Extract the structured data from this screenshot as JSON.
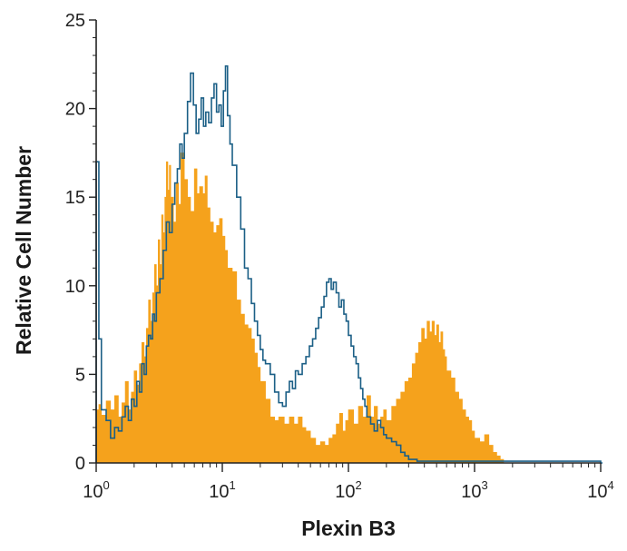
{
  "chart_data": {
    "type": "histogram-overlay",
    "title": "",
    "xlabel": "Plexin B3",
    "ylabel": "Relative Cell Number",
    "x_scale": "log",
    "xlim": [
      1,
      10000
    ],
    "ylim": [
      0,
      25
    ],
    "grid": false,
    "legend": "none",
    "x_ticks": [
      {
        "base": "10",
        "exp": "0"
      },
      {
        "base": "10",
        "exp": "1"
      },
      {
        "base": "10",
        "exp": "2"
      },
      {
        "base": "10",
        "exp": "3"
      },
      {
        "base": "10",
        "exp": "4"
      }
    ],
    "y_ticks": [
      "0",
      "5",
      "10",
      "15",
      "20",
      "25"
    ],
    "series": [
      {
        "style": "filled",
        "color": "#f5a21c",
        "points": [
          [
            1.0,
            3
          ],
          [
            1.05,
            3.3
          ],
          [
            1.1,
            2.7
          ],
          [
            1.2,
            3.5
          ],
          [
            1.3,
            3.0
          ],
          [
            1.4,
            3.8
          ],
          [
            1.5,
            2.6
          ],
          [
            1.6,
            3.4
          ],
          [
            1.7,
            4.6
          ],
          [
            1.8,
            3.0
          ],
          [
            1.9,
            4.0
          ],
          [
            2.0,
            5.2
          ],
          [
            2.1,
            4.4
          ],
          [
            2.2,
            5.6
          ],
          [
            2.3,
            6.8
          ],
          [
            2.4,
            6.0
          ],
          [
            2.5,
            7.6
          ],
          [
            2.6,
            9.2
          ],
          [
            2.7,
            8.0
          ],
          [
            2.8,
            9.6
          ],
          [
            2.9,
            11.2
          ],
          [
            3.0,
            10.0
          ],
          [
            3.1,
            12.6
          ],
          [
            3.2,
            11.2
          ],
          [
            3.3,
            14.0
          ],
          [
            3.4,
            13.0
          ],
          [
            3.5,
            15.0
          ],
          [
            3.6,
            17.0
          ],
          [
            3.7,
            15.4
          ],
          [
            3.8,
            16.8
          ],
          [
            3.9,
            15.0
          ],
          [
            4.1,
            13.6
          ],
          [
            4.3,
            15.8
          ],
          [
            4.5,
            14.6
          ],
          [
            4.7,
            17.5
          ],
          [
            5.0,
            16.0
          ],
          [
            5.3,
            15.0
          ],
          [
            5.6,
            14.2
          ],
          [
            6.0,
            16.6
          ],
          [
            6.3,
            15.2
          ],
          [
            6.6,
            15.6
          ],
          [
            7.0,
            15.2
          ],
          [
            7.3,
            16.2
          ],
          [
            7.6,
            14.4
          ],
          [
            8.0,
            13.6
          ],
          [
            8.5,
            13.0
          ],
          [
            9.0,
            13.4
          ],
          [
            9.5,
            13.8
          ],
          [
            10.0,
            12.8
          ],
          [
            10.5,
            12.0
          ],
          [
            11.0,
            11.0
          ],
          [
            12.0,
            10.8
          ],
          [
            13.0,
            9.2
          ],
          [
            14.0,
            8.4
          ],
          [
            15.0,
            7.8
          ],
          [
            16.0,
            7.6
          ],
          [
            17.0,
            7.0
          ],
          [
            18.0,
            6.2
          ],
          [
            19.0,
            5.4
          ],
          [
            20.0,
            4.6
          ],
          [
            22.0,
            3.6
          ],
          [
            24.0,
            2.6
          ],
          [
            26.0,
            2.4
          ],
          [
            28.0,
            2.6
          ],
          [
            31.0,
            2.2
          ],
          [
            34.0,
            2.6
          ],
          [
            37.0,
            2.2
          ],
          [
            40.0,
            2.6
          ],
          [
            43.0,
            2.0
          ],
          [
            46.0,
            1.8
          ],
          [
            50.0,
            1.4
          ],
          [
            55.0,
            1.0
          ],
          [
            60.0,
            1.2
          ],
          [
            65.0,
            1.0
          ],
          [
            70.0,
            1.4
          ],
          [
            75.0,
            1.6
          ],
          [
            80.0,
            2.2
          ],
          [
            85.0,
            2.8
          ],
          [
            90.0,
            1.8
          ],
          [
            95.0,
            2.4
          ],
          [
            100.0,
            3.0
          ],
          [
            110.0,
            2.2
          ],
          [
            120.0,
            3.2
          ],
          [
            130.0,
            2.6
          ],
          [
            140.0,
            3.8
          ],
          [
            150.0,
            2.6
          ],
          [
            160.0,
            3.2
          ],
          [
            170.0,
            2.2
          ],
          [
            180.0,
            2.6
          ],
          [
            190.0,
            3.0
          ],
          [
            200.0,
            2.4
          ],
          [
            220.0,
            3.2
          ],
          [
            240.0,
            3.6
          ],
          [
            260.0,
            4.0
          ],
          [
            280.0,
            4.6
          ],
          [
            300.0,
            4.8
          ],
          [
            320.0,
            5.6
          ],
          [
            340.0,
            6.2
          ],
          [
            360.0,
            6.8
          ],
          [
            380.0,
            7.6
          ],
          [
            400.0,
            7.0
          ],
          [
            420.0,
            8.0
          ],
          [
            440.0,
            7.4
          ],
          [
            460.0,
            8.0
          ],
          [
            480.0,
            7.2
          ],
          [
            500.0,
            7.8
          ],
          [
            520.0,
            6.8
          ],
          [
            540.0,
            7.4
          ],
          [
            560.0,
            6.4
          ],
          [
            580.0,
            6.0
          ],
          [
            600.0,
            5.2
          ],
          [
            650.0,
            4.8
          ],
          [
            700.0,
            4.0
          ],
          [
            750.0,
            3.6
          ],
          [
            800.0,
            3.0
          ],
          [
            850.0,
            2.6
          ],
          [
            900.0,
            2.4
          ],
          [
            950.0,
            1.8
          ],
          [
            1000.0,
            1.4
          ],
          [
            1100.0,
            1.2
          ],
          [
            1200.0,
            1.6
          ],
          [
            1300.0,
            1.0
          ],
          [
            1400.0,
            0.6
          ],
          [
            1500.0,
            0.4
          ],
          [
            1600.0,
            0.2
          ],
          [
            1700.0,
            0
          ]
        ]
      },
      {
        "style": "outline",
        "color": "#1b5f86",
        "points": [
          [
            1.0,
            17.0
          ],
          [
            1.05,
            7.0
          ],
          [
            1.1,
            3.0
          ],
          [
            1.2,
            2.4
          ],
          [
            1.3,
            1.4
          ],
          [
            1.4,
            2.0
          ],
          [
            1.5,
            1.8
          ],
          [
            1.6,
            2.6
          ],
          [
            1.7,
            3.2
          ],
          [
            1.8,
            2.4
          ],
          [
            1.9,
            3.6
          ],
          [
            2.0,
            3.2
          ],
          [
            2.1,
            4.6
          ],
          [
            2.2,
            4.0
          ],
          [
            2.3,
            5.6
          ],
          [
            2.4,
            5.0
          ],
          [
            2.5,
            6.6
          ],
          [
            2.6,
            7.2
          ],
          [
            2.7,
            7.0
          ],
          [
            2.8,
            8.4
          ],
          [
            2.9,
            8.0
          ],
          [
            3.0,
            9.6
          ],
          [
            3.2,
            10.4
          ],
          [
            3.4,
            12.0
          ],
          [
            3.6,
            13.6
          ],
          [
            3.8,
            13.0
          ],
          [
            4.0,
            14.6
          ],
          [
            4.2,
            15.8
          ],
          [
            4.4,
            16.6
          ],
          [
            4.6,
            18.0
          ],
          [
            4.8,
            17.2
          ],
          [
            5.0,
            18.6
          ],
          [
            5.3,
            20.4
          ],
          [
            5.6,
            22.0
          ],
          [
            5.9,
            20.2
          ],
          [
            6.2,
            18.6
          ],
          [
            6.5,
            19.4
          ],
          [
            6.8,
            20.6
          ],
          [
            7.1,
            19.0
          ],
          [
            7.4,
            19.8
          ],
          [
            7.8,
            19.2
          ],
          [
            8.2,
            20.6
          ],
          [
            8.6,
            21.4
          ],
          [
            9.0,
            19.8
          ],
          [
            9.4,
            20.2
          ],
          [
            9.8,
            19.0
          ],
          [
            10.2,
            21.0
          ],
          [
            10.6,
            22.4
          ],
          [
            11.0,
            19.6
          ],
          [
            11.5,
            18.0
          ],
          [
            12.0,
            16.8
          ],
          [
            13.0,
            15.0
          ],
          [
            14.0,
            13.2
          ],
          [
            15.0,
            11.0
          ],
          [
            16.0,
            10.4
          ],
          [
            17.0,
            9.0
          ],
          [
            18.0,
            8.0
          ],
          [
            19.0,
            7.2
          ],
          [
            20.0,
            6.4
          ],
          [
            21.0,
            5.8
          ],
          [
            22.0,
            5.6
          ],
          [
            24.0,
            5.0
          ],
          [
            26.0,
            4.0
          ],
          [
            28.0,
            3.4
          ],
          [
            30.0,
            3.2
          ],
          [
            32.0,
            4.0
          ],
          [
            34.0,
            4.6
          ],
          [
            36.0,
            4.2
          ],
          [
            38.0,
            5.2
          ],
          [
            40.0,
            5.0
          ],
          [
            43.0,
            5.6
          ],
          [
            46.0,
            6.0
          ],
          [
            49.0,
            6.6
          ],
          [
            52.0,
            7.0
          ],
          [
            55.0,
            7.6
          ],
          [
            58.0,
            8.2
          ],
          [
            61.0,
            8.8
          ],
          [
            64.0,
            9.4
          ],
          [
            67.0,
            10.2
          ],
          [
            70.0,
            10.4
          ],
          [
            73.0,
            9.8
          ],
          [
            76.0,
            10.2
          ],
          [
            80.0,
            9.6
          ],
          [
            84.0,
            8.8
          ],
          [
            88.0,
            9.2
          ],
          [
            92.0,
            8.4
          ],
          [
            96.0,
            8.0
          ],
          [
            100.0,
            7.2
          ],
          [
            105.0,
            6.6
          ],
          [
            110.0,
            6.0
          ],
          [
            115.0,
            5.6
          ],
          [
            120.0,
            4.8
          ],
          [
            125.0,
            4.2
          ],
          [
            130.0,
            3.6
          ],
          [
            135.0,
            3.2
          ],
          [
            140.0,
            2.6
          ],
          [
            150.0,
            2.2
          ],
          [
            160.0,
            1.8
          ],
          [
            170.0,
            2.4
          ],
          [
            180.0,
            2.0
          ],
          [
            190.0,
            1.6
          ],
          [
            200.0,
            1.4
          ],
          [
            220.0,
            1.2
          ],
          [
            240.0,
            1.0
          ],
          [
            260.0,
            0.6
          ],
          [
            280.0,
            0.4
          ],
          [
            300.0,
            0.2
          ],
          [
            350.0,
            0.1
          ],
          [
            400.0,
            0.1
          ],
          [
            10000.0,
            0
          ]
        ]
      }
    ]
  }
}
